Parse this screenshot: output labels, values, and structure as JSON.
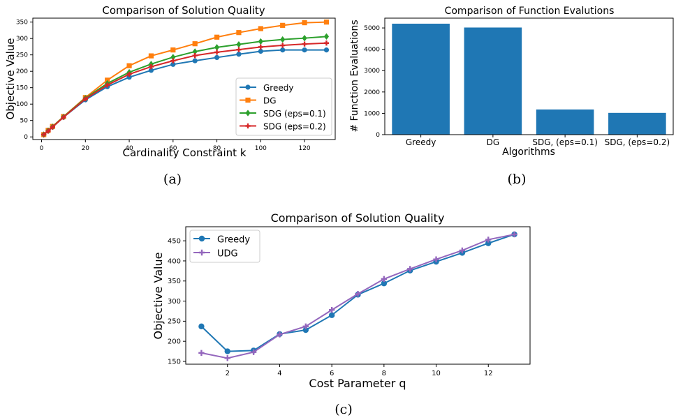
{
  "panels": {
    "a": {
      "caption": "(a)"
    },
    "b": {
      "caption": "(b)"
    },
    "c": {
      "caption": "(c)"
    }
  },
  "colors": {
    "blue": "#1f77b4",
    "orange": "#ff7f0e",
    "green": "#2ca02c",
    "red": "#d62728",
    "purple": "#9467bd"
  },
  "chart_data": [
    {
      "id": "a",
      "type": "line",
      "title": "Comparison of Solution Quality",
      "xlabel": "Cardinality Constraint k",
      "ylabel": "Objective Value",
      "x": [
        1,
        3,
        5,
        10,
        20,
        30,
        40,
        50,
        60,
        70,
        80,
        90,
        100,
        110,
        120,
        130
      ],
      "xlim": [
        -4,
        134
      ],
      "ylim": [
        -8,
        362
      ],
      "xticks": [
        0,
        20,
        40,
        60,
        80,
        100,
        120
      ],
      "yticks": [
        0,
        50,
        100,
        150,
        200,
        250,
        300,
        350
      ],
      "legend": "lower right",
      "series": [
        {
          "name": "Greedy",
          "color": "#1f77b4",
          "marker": "circle",
          "values": [
            7,
            18,
            30,
            60,
            113,
            153,
            182,
            203,
            221,
            232,
            242,
            252,
            261,
            265,
            265,
            265
          ]
        },
        {
          "name": "DG",
          "color": "#ff7f0e",
          "marker": "square",
          "values": [
            7,
            20,
            32,
            62,
            120,
            173,
            217,
            247,
            265,
            284,
            304,
            318,
            330,
            340,
            348,
            350
          ]
        },
        {
          "name": "SDG (eps=0.1)",
          "color": "#2ca02c",
          "marker": "diamond",
          "values": [
            7,
            19,
            31,
            61,
            118,
            163,
            197,
            222,
            243,
            260,
            273,
            282,
            291,
            297,
            301,
            306
          ]
        },
        {
          "name": "SDG (eps=0.2)",
          "color": "#d62728",
          "marker": "plus",
          "values": [
            7,
            18,
            30,
            60,
            116,
            158,
            191,
            214,
            232,
            248,
            258,
            266,
            274,
            279,
            283,
            286
          ]
        }
      ]
    },
    {
      "id": "b",
      "type": "bar",
      "title": "Comparison of Function Evalutions",
      "xlabel": "Algorithms",
      "ylabel": "# Function Evaluations",
      "categories": [
        "Greedy",
        "DG",
        "SDG, (eps=0.1)",
        "SDG, (eps=0.2)"
      ],
      "values": [
        5200,
        5020,
        1180,
        1020
      ],
      "ylim": [
        0,
        5460
      ],
      "yticks": [
        0,
        1000,
        2000,
        3000,
        4000,
        5000
      ],
      "color": "#1f77b4"
    },
    {
      "id": "c",
      "type": "line",
      "title": "Comparison of Solution Quality",
      "xlabel": "Cost Parameter q",
      "ylabel": "Objective Value",
      "x": [
        1,
        2,
        3,
        4,
        5,
        6,
        7,
        8,
        9,
        10,
        11,
        12,
        13
      ],
      "xlim": [
        0.4,
        13.6
      ],
      "ylim": [
        143,
        485
      ],
      "xticks": [
        2,
        4,
        6,
        8,
        10,
        12
      ],
      "yticks": [
        150,
        200,
        250,
        300,
        350,
        400,
        450
      ],
      "legend": "upper left",
      "series": [
        {
          "name": "Greedy",
          "color": "#1f77b4",
          "marker": "circle",
          "values": [
            237,
            175,
            177,
            218,
            228,
            265,
            316,
            344,
            376,
            398,
            420,
            444,
            466
          ]
        },
        {
          "name": "UDG",
          "color": "#9467bd",
          "marker": "plus",
          "values": [
            171,
            158,
            173,
            217,
            237,
            278,
            318,
            355,
            380,
            404,
            426,
            453,
            466
          ]
        }
      ]
    }
  ]
}
